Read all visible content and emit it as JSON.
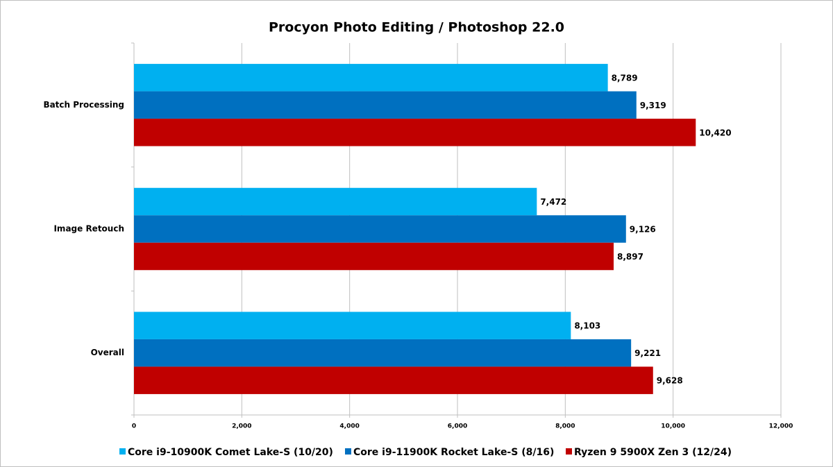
{
  "chart_data": {
    "type": "bar",
    "orientation": "horizontal",
    "title": "Procyon Photo Editing / Photoshop 22.0",
    "categories": [
      "Batch Processing",
      "Image Retouch",
      "Overall"
    ],
    "series": [
      {
        "name": "Core i9-10900K Comet Lake-S (10/20)",
        "color": "#00b0f0",
        "values": [
          8789,
          7472,
          8103
        ],
        "value_labels": [
          "8,789",
          "7,472",
          "8,103"
        ]
      },
      {
        "name": "Core i9-11900K Rocket Lake-S (8/16)",
        "color": "#0070c0",
        "values": [
          9319,
          9126,
          9221
        ],
        "value_labels": [
          "9,319",
          "9,126",
          "9,221"
        ]
      },
      {
        "name": "Ryzen 9 5900X Zen 3 (12/24)",
        "color": "#c00000",
        "values": [
          10420,
          8897,
          9628
        ],
        "value_labels": [
          "10,420",
          "8,897",
          "9,628"
        ]
      }
    ],
    "xlim": [
      0,
      12000
    ],
    "xticks": [
      0,
      {
        "value": 2000,
        "label": "2,000"
      },
      {
        "value": 4000,
        "label": "4,000"
      },
      {
        "value": 6000,
        "label": "6,000"
      },
      {
        "value": 8000,
        "label": "8,000"
      },
      {
        "value": 10000,
        "label": "10,000"
      },
      {
        "value": 12000,
        "label": "12,000"
      }
    ],
    "grid": true,
    "legend": "bottom"
  }
}
